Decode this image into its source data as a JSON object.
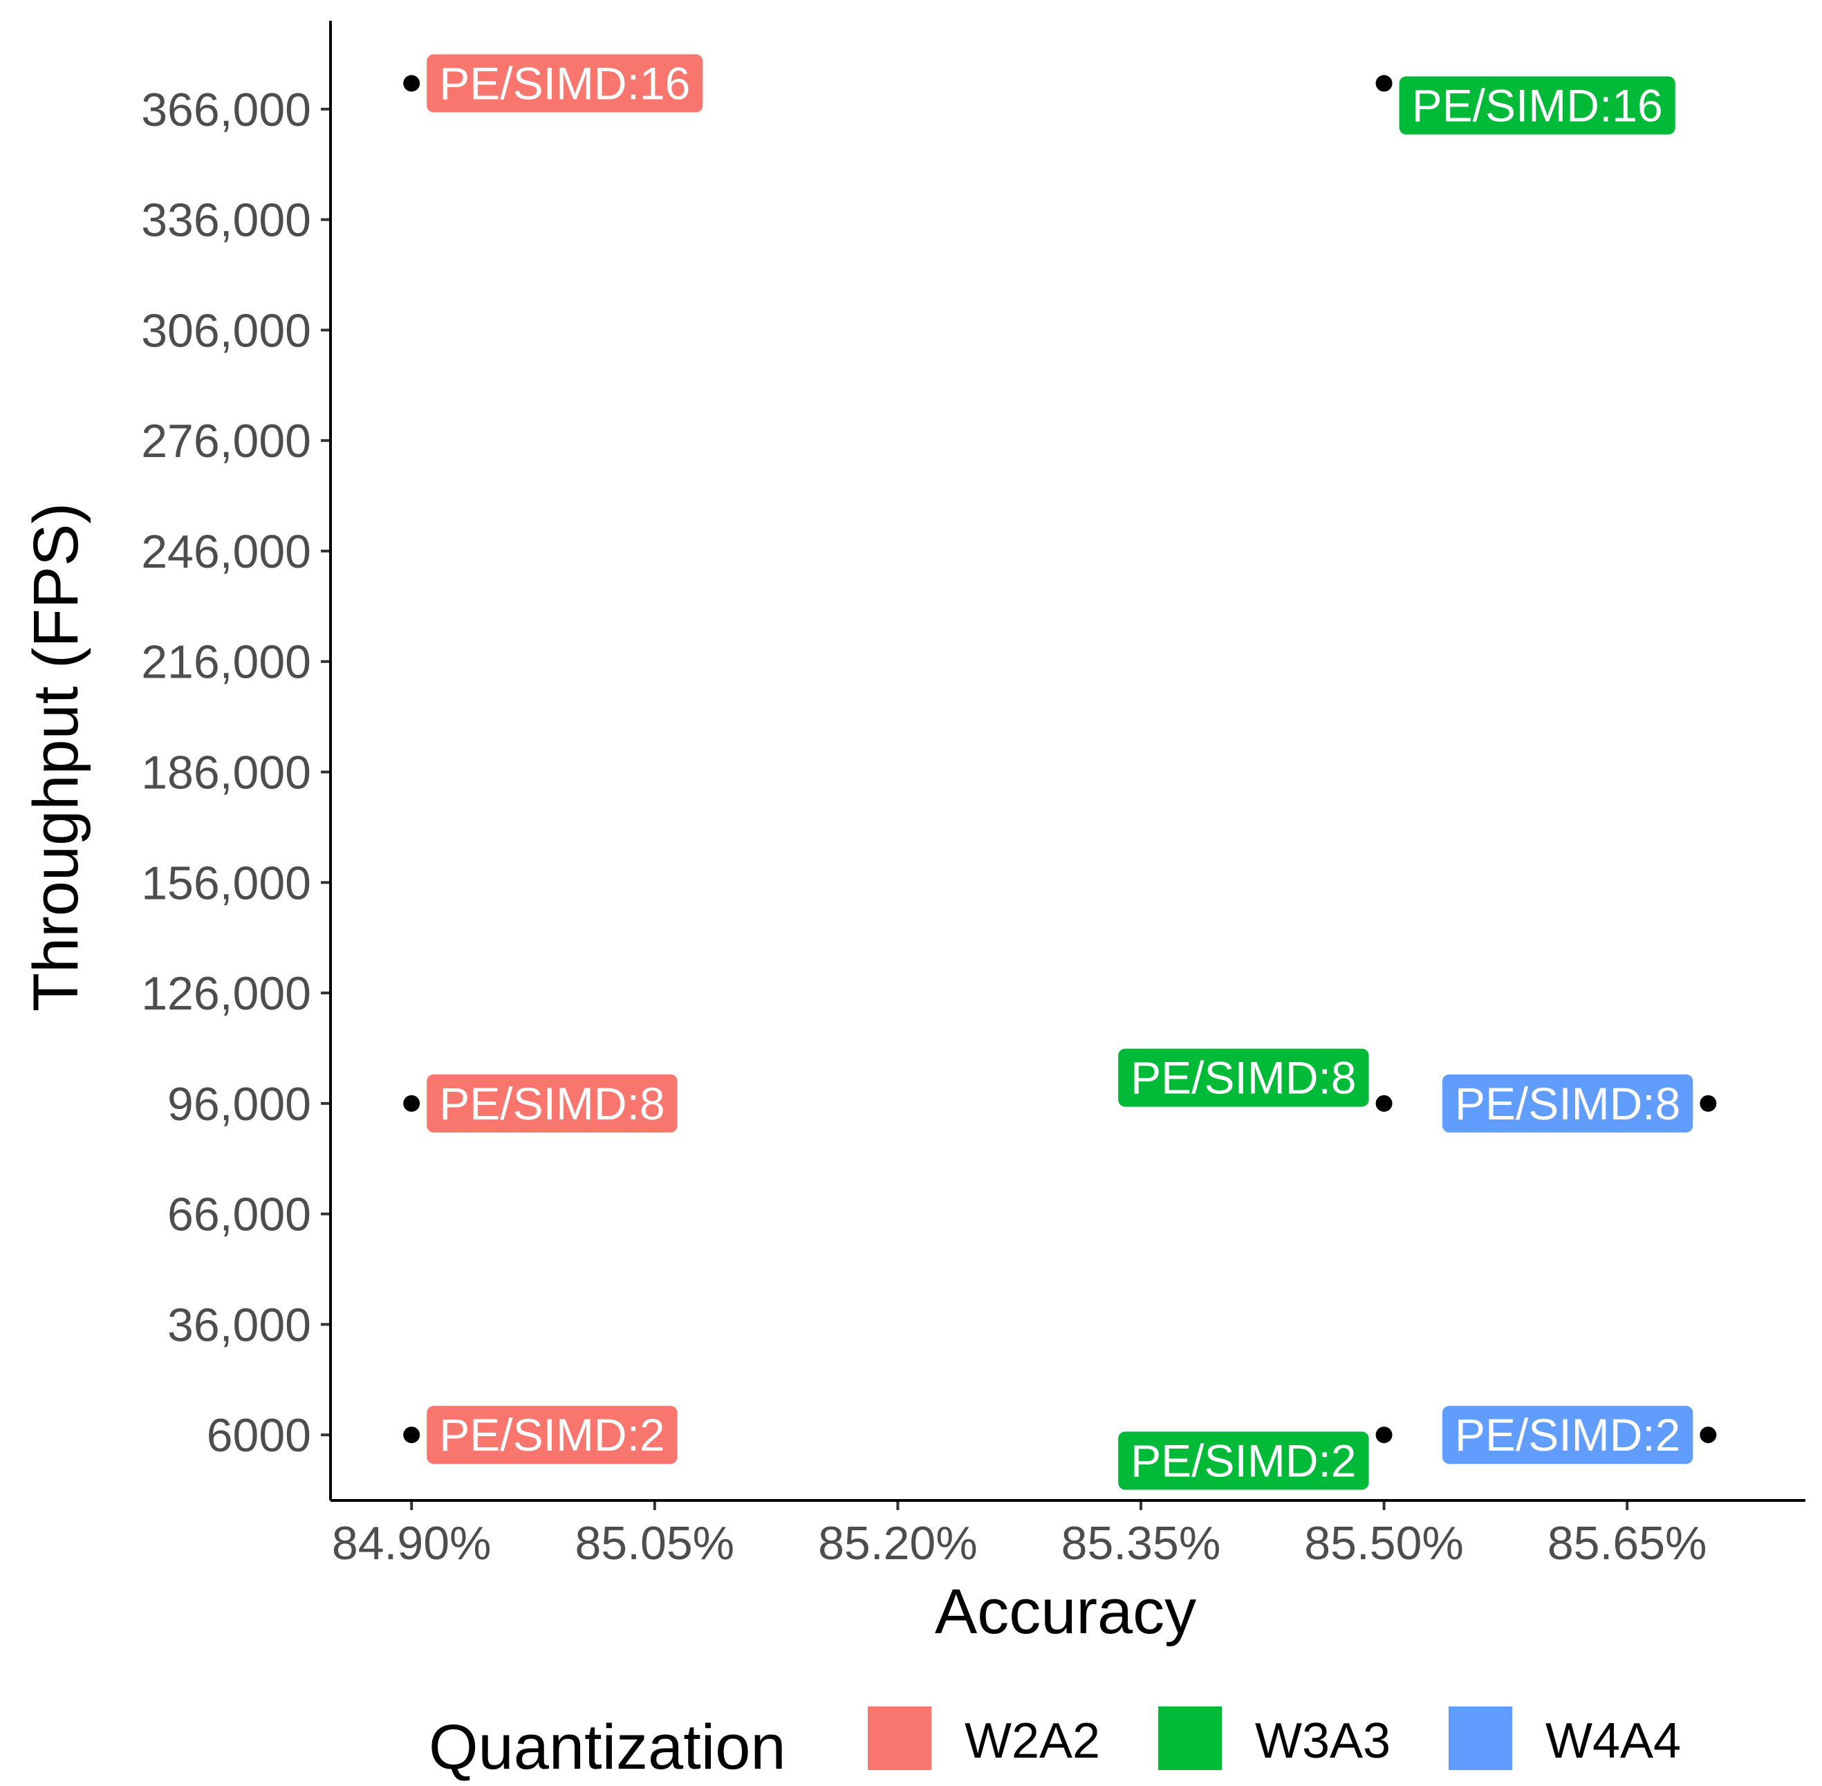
{
  "chart_data": {
    "type": "scatter",
    "xlabel": "Accuracy",
    "ylabel": "Throughput (FPS)",
    "xlim": [
      84.85,
      85.76
    ],
    "ylim": [
      -11800,
      390000
    ],
    "x_ticks": [
      84.9,
      85.05,
      85.2,
      85.35,
      85.5,
      85.65
    ],
    "x_tick_labels": [
      "84.90%",
      "85.05%",
      "85.20%",
      "85.35%",
      "85.50%",
      "85.65%"
    ],
    "y_ticks": [
      6000,
      36000,
      66000,
      96000,
      126000,
      156000,
      186000,
      216000,
      246000,
      276000,
      306000,
      336000,
      366000
    ],
    "y_tick_labels": [
      "6000",
      "36,000",
      "66,000",
      "96,000",
      "126,000",
      "156,000",
      "186,000",
      "216,000",
      "246,000",
      "276,000",
      "306,000",
      "336,000",
      "366,000"
    ],
    "grid": false,
    "legend": {
      "title": "Quantization",
      "position": "bottom",
      "entries": [
        {
          "name": "W2A2",
          "color": "#F8766D"
        },
        {
          "name": "W3A3",
          "color": "#00BA38"
        },
        {
          "name": "W4A4",
          "color": "#619CFF"
        }
      ]
    },
    "points": [
      {
        "series": "W2A2",
        "x": 84.9,
        "y": 373000,
        "label": "PE/SIMD:16",
        "label_side": "right",
        "label_dy": 0
      },
      {
        "series": "W2A2",
        "x": 84.9,
        "y": 96000,
        "label": "PE/SIMD:8",
        "label_side": "right",
        "label_dy": 0
      },
      {
        "series": "W2A2",
        "x": 84.9,
        "y": 6000,
        "label": "PE/SIMD:2",
        "label_side": "right",
        "label_dy": 0
      },
      {
        "series": "W3A3",
        "x": 85.5,
        "y": 373000,
        "label": "PE/SIMD:16",
        "label_side": "right",
        "label_dy": -6000
      },
      {
        "series": "W3A3",
        "x": 85.5,
        "y": 96000,
        "label": "PE/SIMD:8",
        "label_side": "left",
        "label_dy": 7000
      },
      {
        "series": "W3A3",
        "x": 85.5,
        "y": 6000,
        "label": "PE/SIMD:2",
        "label_side": "left",
        "label_dy": -7000
      },
      {
        "series": "W4A4",
        "x": 85.7,
        "y": 96000,
        "label": "PE/SIMD:8",
        "label_side": "left",
        "label_dy": 0
      },
      {
        "series": "W4A4",
        "x": 85.7,
        "y": 6000,
        "label": "PE/SIMD:2",
        "label_side": "left",
        "label_dy": 0
      }
    ]
  }
}
